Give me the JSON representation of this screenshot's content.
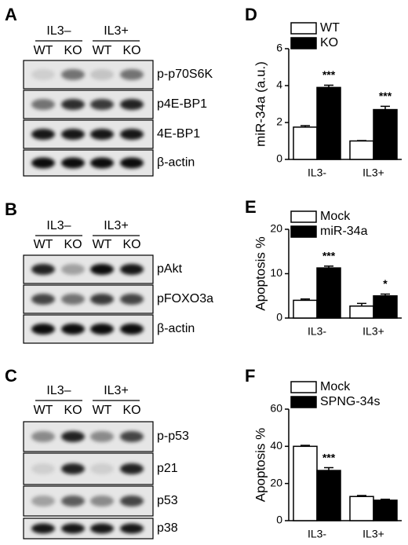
{
  "blots": [
    {
      "letter": "A",
      "groups": [
        "IL3–",
        "IL3+"
      ],
      "lanes": [
        "WT",
        "KO",
        "WT",
        "KO"
      ],
      "rows": [
        "p-p70S6K",
        "p4E-BP1",
        "4E-BP1",
        "β-actin"
      ]
    },
    {
      "letter": "B",
      "groups": [
        "IL3–",
        "IL3+"
      ],
      "lanes": [
        "WT",
        "KO",
        "WT",
        "KO"
      ],
      "rows": [
        "pAkt",
        "pFOXO3a",
        "β-actin"
      ]
    },
    {
      "letter": "C",
      "groups": [
        "IL3–",
        "IL3+"
      ],
      "lanes": [
        "WT",
        "KO",
        "WT",
        "KO"
      ],
      "rows": [
        "p-p53",
        "p21",
        "p53",
        "p38"
      ]
    }
  ],
  "chart_data": [
    {
      "type": "bar",
      "letter": "D",
      "y_label": "miR-34a (a.u.)",
      "categories": [
        "IL3-",
        "IL3+"
      ],
      "series": [
        {
          "name": "WT",
          "color": "#ffffff",
          "values": [
            1.75,
            1.0
          ],
          "errors": [
            0.08,
            0.02
          ]
        },
        {
          "name": "KO",
          "color": "#000000",
          "values": [
            3.9,
            2.7
          ],
          "errors": [
            0.12,
            0.18
          ],
          "significance": [
            "***",
            "***"
          ]
        }
      ],
      "ylim": [
        0,
        6
      ],
      "yticks": [
        0,
        2,
        4,
        6
      ]
    },
    {
      "type": "bar",
      "letter": "E",
      "y_label": "Apoptosis %",
      "categories": [
        "IL3-",
        "IL3+"
      ],
      "series": [
        {
          "name": "Mock",
          "color": "#ffffff",
          "values": [
            4.0,
            2.7
          ],
          "errors": [
            0.3,
            0.6
          ]
        },
        {
          "name": "miR-34a",
          "color": "#000000",
          "values": [
            11.3,
            5.0
          ],
          "errors": [
            0.4,
            0.4
          ],
          "significance": [
            "***",
            "*"
          ]
        }
      ],
      "ylim": [
        0,
        20
      ],
      "yticks": [
        0,
        10,
        20
      ]
    },
    {
      "type": "bar",
      "letter": "F",
      "y_label": "Apoptosis %",
      "categories": [
        "IL3-",
        "IL3+"
      ],
      "series": [
        {
          "name": "Mock",
          "color": "#ffffff",
          "values": [
            40,
            13
          ],
          "errors": [
            0.5,
            0.5
          ]
        },
        {
          "name": "SPNG-34s",
          "color": "#000000",
          "values": [
            27,
            11
          ],
          "errors": [
            1.5,
            0.5
          ],
          "significance": [
            "***",
            null
          ]
        }
      ],
      "ylim": [
        0,
        60
      ],
      "yticks": [
        0,
        20,
        40,
        60
      ]
    }
  ]
}
